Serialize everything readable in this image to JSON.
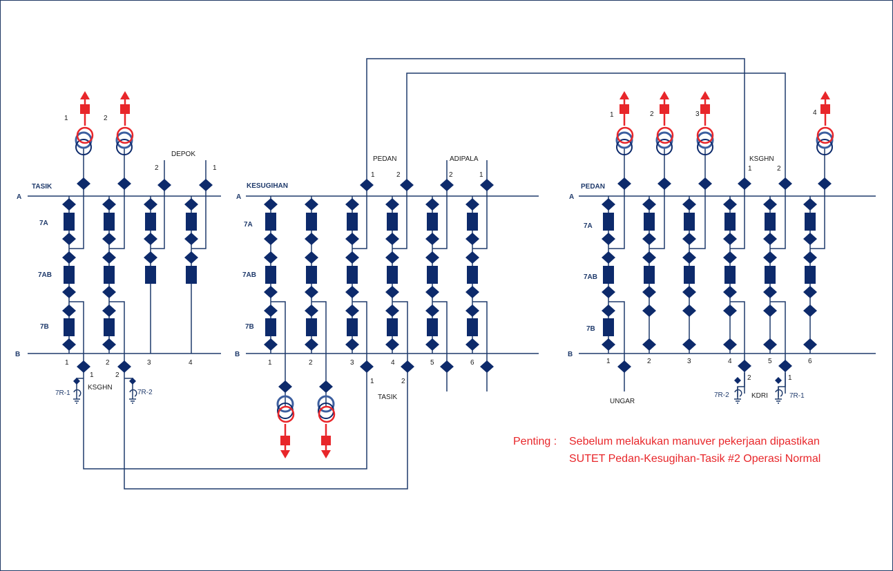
{
  "colors": {
    "line": "#1f3a6b",
    "equipment": "#0d2a6b",
    "feeder": "#e8262a",
    "note": "#e8262a",
    "ring": "#3d5f9f"
  },
  "icons": {
    "breaker": "filled-rectangle",
    "disconnector": "filled-diamond",
    "transformer": "double-circle",
    "earth_switch": "earth-switch-symbol",
    "feeder_out": "red-arrow"
  },
  "labels": {
    "bus_a": "A",
    "bus_b": "B",
    "bay_7a": "7A",
    "bay_7ab": "7AB",
    "bay_7b": "7B",
    "sub1_name": "TASIK",
    "sub2_name": "KESUGIHAN",
    "sub3_name": "PEDAN",
    "depok": "DEPOK",
    "pedan": "PEDAN",
    "adipala": "ADIPALA",
    "ksghn": "KSGHN",
    "ksghn_top": "KSGHN",
    "tasik_bottom": "TASIK",
    "ungar": "UNGAR",
    "kdri": "KDRI",
    "er1_left": "7R-1",
    "er2_left": "7R-2",
    "er2_right": "7R-2",
    "er1_right": "7R-1",
    "n1": "1",
    "n2": "2",
    "n3": "3",
    "n4": "4",
    "n5": "5",
    "n6": "6"
  },
  "note": {
    "prefix": "Penting :",
    "line1": "Sebelum melakukan manuver pekerjaan dipastikan",
    "line2": "SUTET Pedan-Kesugihan-Tasik #2 Operasi Normal"
  }
}
